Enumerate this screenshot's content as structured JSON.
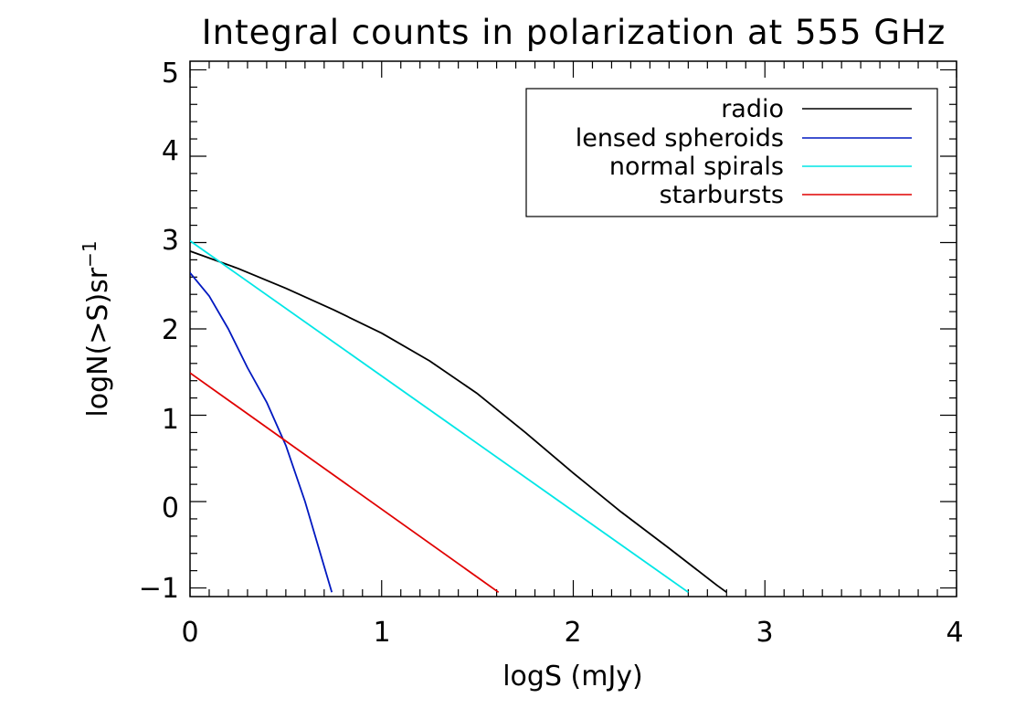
{
  "chart_data": {
    "type": "line",
    "title": "Integral counts in polarization at 555 GHz",
    "xlabel": "logS (mJy)",
    "ylabel": "logN(>S)sr",
    "ylabel_superscript": "−1",
    "xlim": [
      0,
      4
    ],
    "ylim": [
      -1.1,
      5.1
    ],
    "xticks": [
      0,
      1,
      2,
      3,
      4
    ],
    "xtick_labels": [
      "0",
      "1",
      "2",
      "3",
      "4"
    ],
    "yticks": [
      -1,
      0,
      1,
      2,
      3,
      4,
      5
    ],
    "ytick_labels": [
      "−1",
      "0",
      "1",
      "2",
      "3",
      "4",
      "5"
    ],
    "legend_position": "top-right",
    "series": [
      {
        "name": "radio",
        "color": "#000000",
        "x": [
          0,
          0.25,
          0.5,
          0.75,
          1.0,
          1.25,
          1.5,
          1.75,
          2.0,
          2.25,
          2.5,
          2.75,
          2.8
        ],
        "y": [
          2.9,
          2.7,
          2.47,
          2.22,
          1.95,
          1.63,
          1.25,
          0.8,
          0.33,
          -0.12,
          -0.54,
          -0.97,
          -1.05
        ]
      },
      {
        "name": "lensed spheroids",
        "color": "#0018c0",
        "x": [
          0,
          0.1,
          0.2,
          0.3,
          0.4,
          0.5,
          0.6,
          0.7,
          0.74
        ],
        "y": [
          2.65,
          2.38,
          2.0,
          1.55,
          1.15,
          0.65,
          0.0,
          -0.75,
          -1.05
        ]
      },
      {
        "name": "normal spirals",
        "color": "#00e6e6",
        "x": [
          0,
          2.6
        ],
        "y": [
          3.02,
          -1.05
        ]
      },
      {
        "name": "starbursts",
        "color": "#e00000",
        "x": [
          0,
          1.61
        ],
        "y": [
          1.49,
          -1.05
        ]
      }
    ]
  }
}
